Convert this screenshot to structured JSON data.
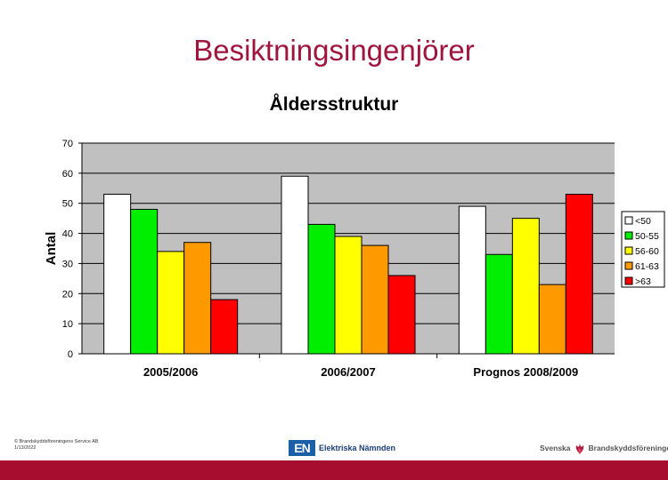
{
  "slide": {
    "title": "Besiktningsingenjörer",
    "footer": {
      "copyright": "© Brandskyddsföreningens Service AB",
      "date": "1/13/2022"
    },
    "logos": {
      "en_mark": "EN",
      "en_text": "Elektriska Nämnden",
      "sb_left": "Svenska",
      "sb_right": "Brandskyddsföreningen"
    },
    "colors": {
      "title": "#a0153e",
      "bottom_bar": "#a60d2e",
      "plot_background": "#c0c0c0"
    }
  },
  "chart_data": {
    "type": "bar",
    "title": "Åldersstruktur",
    "ylabel": "Antal",
    "xlabel": "",
    "ylim": [
      0,
      70
    ],
    "yticks": [
      0,
      10,
      20,
      30,
      40,
      50,
      60,
      70
    ],
    "grid": true,
    "legend_position": "right",
    "categories": [
      "2005/2006",
      "2006/2007",
      "Prognos 2008/2009"
    ],
    "series": [
      {
        "name": "<50",
        "color": "#ffffff",
        "values": [
          53,
          59,
          49
        ]
      },
      {
        "name": "50-55",
        "color": "#00ee00",
        "values": [
          48,
          43,
          33
        ]
      },
      {
        "name": "56-60",
        "color": "#ffff00",
        "values": [
          34,
          39,
          45
        ]
      },
      {
        "name": "61-63",
        "color": "#ff9900",
        "values": [
          37,
          36,
          23
        ]
      },
      {
        "name": ">63",
        "color": "#ff0000",
        "values": [
          18,
          26,
          53
        ]
      }
    ]
  }
}
